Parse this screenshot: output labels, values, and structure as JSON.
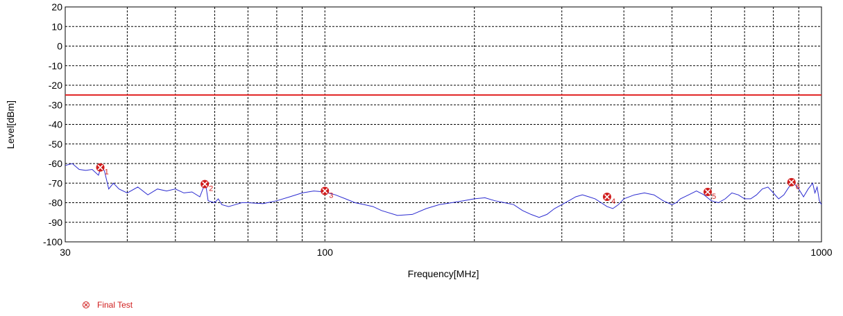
{
  "chart_data": {
    "type": "line",
    "xlabel": "Frequency[MHz]",
    "ylabel": "Level[dBm]",
    "x_scale": "log",
    "xlim": [
      30,
      1000
    ],
    "ylim": [
      -100,
      20
    ],
    "x_tick_labels": [
      {
        "value": 30,
        "label": "30"
      },
      {
        "value": 100,
        "label": "100"
      },
      {
        "value": 1000,
        "label": "1000"
      }
    ],
    "x_gridlines": [
      40,
      50,
      60,
      70,
      80,
      90,
      100,
      200,
      300,
      400,
      500,
      600,
      700,
      800,
      900
    ],
    "y_ticks": [
      20,
      10,
      0,
      -10,
      -20,
      -30,
      -40,
      -50,
      -60,
      -70,
      -80,
      -90,
      -100
    ],
    "grid": true,
    "limit_line": {
      "value": -25,
      "color": "#e02020"
    },
    "series": [
      {
        "color": "#2a2ad0",
        "points": [
          [
            30,
            -61
          ],
          [
            31,
            -60
          ],
          [
            32,
            -63
          ],
          [
            33,
            -63.5
          ],
          [
            34,
            -63
          ],
          [
            35,
            -66
          ],
          [
            35.5,
            -61
          ],
          [
            36,
            -64
          ],
          [
            36.7,
            -73
          ],
          [
            37.5,
            -70
          ],
          [
            38.5,
            -73
          ],
          [
            40,
            -75
          ],
          [
            42,
            -72
          ],
          [
            44,
            -76
          ],
          [
            46,
            -73
          ],
          [
            48,
            -74
          ],
          [
            50,
            -73
          ],
          [
            52,
            -75
          ],
          [
            54,
            -74.5
          ],
          [
            56,
            -77
          ],
          [
            57,
            -72
          ],
          [
            57.5,
            -70
          ],
          [
            58.2,
            -79
          ],
          [
            60,
            -80
          ],
          [
            61,
            -78
          ],
          [
            62,
            -81
          ],
          [
            64,
            -82
          ],
          [
            66,
            -81
          ],
          [
            68,
            -80
          ],
          [
            70,
            -80
          ],
          [
            75,
            -80.5
          ],
          [
            80,
            -79
          ],
          [
            85,
            -77
          ],
          [
            90,
            -75
          ],
          [
            95,
            -74
          ],
          [
            100,
            -74.5
          ],
          [
            105,
            -76
          ],
          [
            110,
            -78
          ],
          [
            115,
            -80
          ],
          [
            120,
            -81
          ],
          [
            125,
            -82
          ],
          [
            130,
            -84
          ],
          [
            140,
            -86.5
          ],
          [
            150,
            -86
          ],
          [
            160,
            -83
          ],
          [
            170,
            -81
          ],
          [
            180,
            -80
          ],
          [
            190,
            -79
          ],
          [
            200,
            -78
          ],
          [
            210,
            -77.5
          ],
          [
            220,
            -79
          ],
          [
            230,
            -80
          ],
          [
            240,
            -81
          ],
          [
            250,
            -84
          ],
          [
            260,
            -86
          ],
          [
            270,
            -87.5
          ],
          [
            280,
            -86
          ],
          [
            290,
            -83
          ],
          [
            300,
            -81
          ],
          [
            310,
            -79
          ],
          [
            320,
            -77
          ],
          [
            330,
            -76
          ],
          [
            340,
            -77
          ],
          [
            350,
            -78
          ],
          [
            360,
            -80
          ],
          [
            370,
            -82
          ],
          [
            380,
            -83
          ],
          [
            390,
            -81
          ],
          [
            400,
            -78
          ],
          [
            420,
            -76
          ],
          [
            440,
            -75
          ],
          [
            460,
            -76
          ],
          [
            480,
            -79
          ],
          [
            500,
            -81
          ],
          [
            510,
            -80
          ],
          [
            520,
            -78
          ],
          [
            540,
            -76
          ],
          [
            560,
            -74
          ],
          [
            580,
            -76
          ],
          [
            600,
            -79
          ],
          [
            620,
            -80
          ],
          [
            640,
            -78
          ],
          [
            660,
            -75
          ],
          [
            680,
            -76
          ],
          [
            700,
            -78
          ],
          [
            720,
            -78
          ],
          [
            740,
            -76
          ],
          [
            760,
            -73
          ],
          [
            780,
            -72
          ],
          [
            800,
            -75
          ],
          [
            820,
            -78
          ],
          [
            840,
            -76
          ],
          [
            860,
            -72
          ],
          [
            880,
            -70
          ],
          [
            900,
            -73
          ],
          [
            920,
            -77
          ],
          [
            940,
            -73
          ],
          [
            960,
            -70
          ],
          [
            970,
            -75
          ],
          [
            980,
            -72
          ],
          [
            990,
            -79
          ],
          [
            1000,
            -81
          ]
        ]
      }
    ],
    "markers": [
      {
        "label": "1",
        "x": 35.3,
        "y": -62
      },
      {
        "label": "2",
        "x": 57.3,
        "y": -70.5
      },
      {
        "label": "3",
        "x": 100,
        "y": -74
      },
      {
        "label": "4",
        "x": 370,
        "y": -77
      },
      {
        "label": "5",
        "x": 590,
        "y": -74.5
      },
      {
        "label": "6",
        "x": 870,
        "y": -69.5
      }
    ],
    "legend": {
      "placement": "bottom-left",
      "entries": [
        {
          "label": "Final Test",
          "color": "#d01c1c"
        }
      ]
    }
  }
}
